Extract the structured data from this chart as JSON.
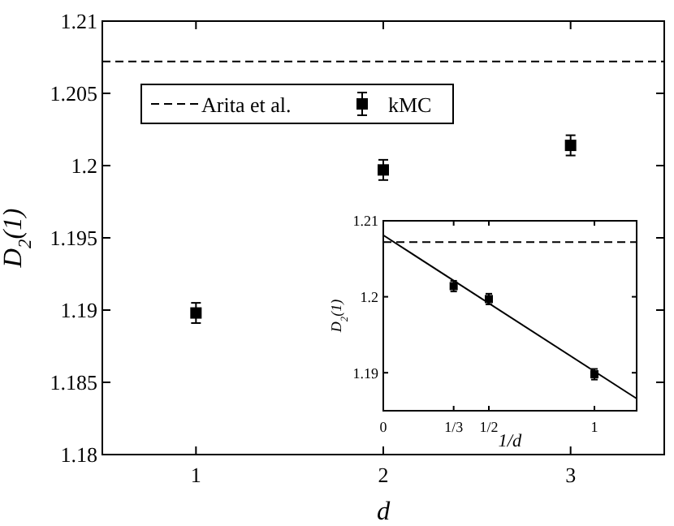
{
  "chart_data": [
    {
      "type": "scatter",
      "xlabel": "d",
      "ylabel": "D$_{2}$(1)",
      "x": [
        1,
        2,
        3
      ],
      "series": [
        {
          "name": "kMC",
          "color": "#000000",
          "values": [
            1.1898,
            1.1997,
            1.2014
          ],
          "errors": [
            0.0007,
            0.0007,
            0.0007
          ]
        }
      ],
      "xlim": [
        0.5,
        3.5
      ],
      "xticks": [
        1,
        2,
        3
      ],
      "ylim": [
        1.18,
        1.21
      ],
      "yticks": [
        1.18,
        1.185,
        1.19,
        1.195,
        1.2,
        1.205,
        1.21
      ],
      "ref_lines": [
        {
          "axis": "y",
          "value": 1.2072,
          "label": "Arita et al.",
          "color": "#000000",
          "line_style": "dashed"
        }
      ],
      "marker": "square",
      "grid": false,
      "legend": "top left"
    },
    {
      "type": "scatter",
      "xlabel": "1/d",
      "ylabel": "D$_{2}$(1)",
      "series": [
        {
          "color": "#000000",
          "marker": "square",
          "x": [
            0.3333,
            0.5,
            1
          ],
          "values": [
            1.2014,
            1.1997,
            1.1898
          ],
          "errors": [
            0.0007,
            0.0007,
            0.0007
          ]
        },
        {
          "type": "line",
          "color": "#000000",
          "marker": "none",
          "x": [
            0,
            1.2
          ],
          "values": [
            1.2081,
            1.1866
          ]
        }
      ],
      "xlim": [
        0,
        1.2
      ],
      "xticks": [
        0,
        {
          "value": 0.3333,
          "label": "1/3"
        },
        {
          "value": 0.5,
          "label": "1/2"
        },
        1
      ],
      "ylim": [
        1.185,
        1.21
      ],
      "yticks": [
        1.19,
        1.2,
        1.21
      ],
      "ref_lines": [
        {
          "axis": "y",
          "value": 1.2072,
          "color": "#000000",
          "line_style": "dashed"
        }
      ],
      "grid": false,
      "legend": false
    }
  ]
}
